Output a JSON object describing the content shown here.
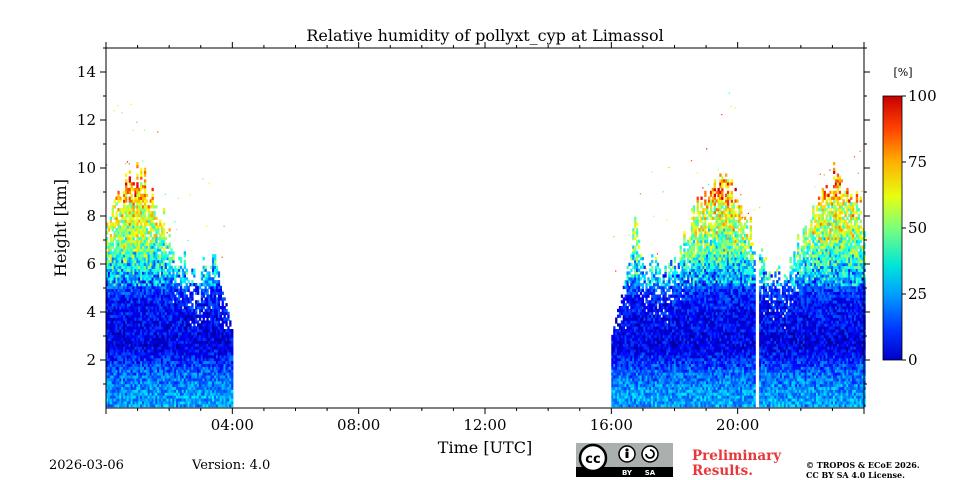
{
  "chart_data": {
    "type": "heatmap",
    "title": "Relative humidity of pollyxt_cyp at Limassol",
    "xlabel": "Time [UTC]",
    "ylabel": "Height [km]",
    "xlim": [
      0,
      24
    ],
    "ylim": [
      0,
      15
    ],
    "x_ticks": [
      {
        "value": 4,
        "label": "04:00"
      },
      {
        "value": 8,
        "label": "08:00"
      },
      {
        "value": 12,
        "label": "12:00"
      },
      {
        "value": 16,
        "label": "16:00"
      },
      {
        "value": 20,
        "label": "20:00"
      }
    ],
    "y_ticks": [
      {
        "value": 2,
        "label": "2"
      },
      {
        "value": 4,
        "label": "4"
      },
      {
        "value": 6,
        "label": "6"
      },
      {
        "value": 8,
        "label": "8"
      },
      {
        "value": 10,
        "label": "10"
      },
      {
        "value": 12,
        "label": "12"
      },
      {
        "value": 14,
        "label": "14"
      }
    ],
    "colorbar": {
      "unit": "[%]",
      "min": 0,
      "max": 100,
      "ticks": [
        {
          "value": 0,
          "label": "0"
        },
        {
          "value": 25,
          "label": "25"
        },
        {
          "value": 50,
          "label": "50"
        },
        {
          "value": 75,
          "label": "75"
        },
        {
          "value": 100,
          "label": "100"
        }
      ],
      "colormap": "jet"
    },
    "measurement_periods": [
      {
        "start_hour": 0.0,
        "end_hour": 4.0
      },
      {
        "start_hour": 16.0,
        "end_hour": 24.0
      }
    ],
    "data_gaps": [
      {
        "start_hour": 20.5,
        "end_hour": 20.65
      }
    ],
    "profile_summary": [
      {
        "height_km": 0.5,
        "rh_percent": 28
      },
      {
        "height_km": 1.5,
        "rh_percent": 22
      },
      {
        "height_km": 2.5,
        "rh_percent": 10
      },
      {
        "height_km": 3.5,
        "rh_percent": 12
      },
      {
        "height_km": 4.5,
        "rh_percent": 15
      },
      {
        "height_km": 5.5,
        "rh_percent": 25
      },
      {
        "height_km": 6.5,
        "rh_percent": 40
      },
      {
        "height_km": 7.5,
        "rh_percent": 50
      },
      {
        "height_km": 8.5,
        "rh_percent": 55
      }
    ]
  },
  "footer": {
    "date": "2026-03-06",
    "version": "Version: 4.0",
    "preliminary": "Preliminary Results.",
    "copyright_line1": "© TROPOS & ECoE 2026.",
    "copyright_line2": "CC BY SA 4.0 License.",
    "cc_text": "cc",
    "by_text": "BY",
    "sa_text": "SA"
  },
  "colors": {
    "preliminary": "#e8373b",
    "cc_badge_bg": "#aab0ad"
  }
}
